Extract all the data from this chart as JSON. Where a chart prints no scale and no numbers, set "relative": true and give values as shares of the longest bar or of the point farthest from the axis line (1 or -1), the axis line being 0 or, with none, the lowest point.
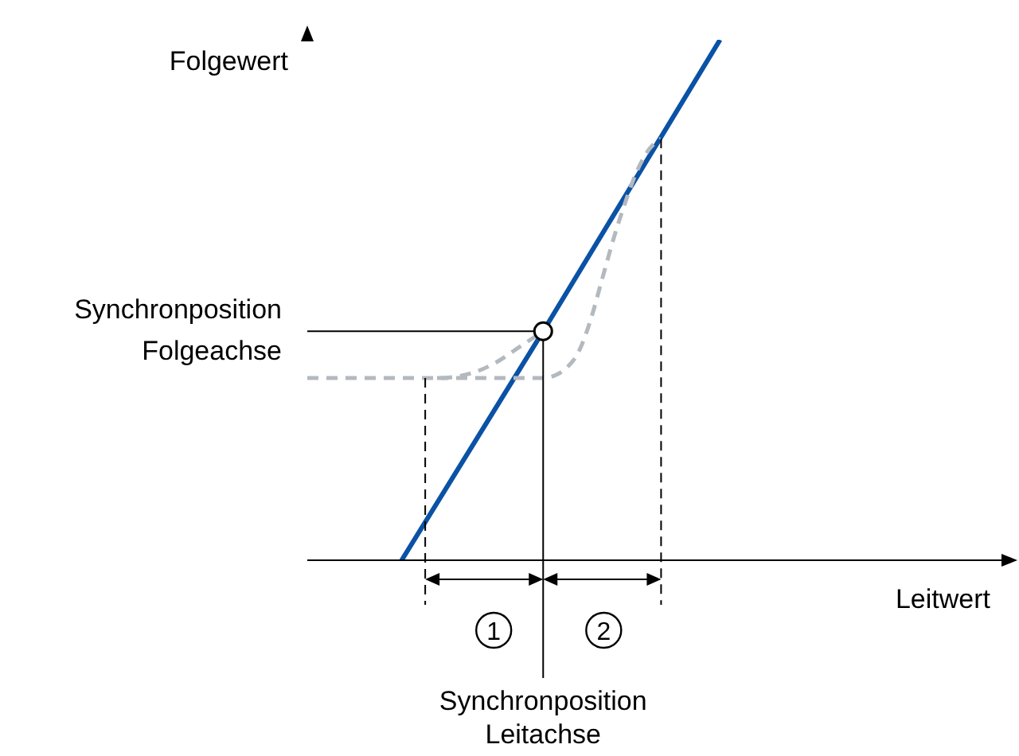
{
  "chart_data": {
    "type": "line",
    "relative": true,
    "xlabel": "Leitwert",
    "ylabel": "Folgewert",
    "categories": [
      null,
      null,
      null,
      null,
      null,
      null,
      null,
      null,
      null,
      null,
      null,
      null,
      null,
      null,
      null,
      null,
      null,
      null,
      null,
      null,
      null,
      null,
      null,
      null,
      null,
      null,
      null,
      null,
      null,
      null,
      null,
      null,
      null,
      null,
      null,
      null,
      null,
      null,
      null,
      null,
      null,
      null,
      null,
      null,
      null,
      null,
      null,
      null,
      null,
      null,
      null,
      null,
      null,
      null,
      null,
      null,
      null,
      null,
      null,
      null
    ],
    "series": [
      {
        "color": "#0a52a5",
        "line_style": "solid",
        "values": [
          null,
          null,
          null,
          null,
          null,
          null,
          null,
          null,
          0,
          null,
          null,
          null,
          null,
          null,
          null,
          null,
          null,
          null,
          null,
          null,
          0.44,
          null,
          null,
          null,
          null,
          null,
          null,
          null,
          null,
          null,
          null,
          null,
          null,
          null,
          null,
          1,
          null,
          null,
          null,
          null,
          null,
          null,
          null,
          null,
          null,
          null,
          null,
          null,
          null,
          null,
          null,
          null,
          null,
          null,
          null,
          null,
          null,
          null,
          null,
          null
        ]
      },
      {
        "color": "#b4b9bf",
        "line_style": "dashed",
        "values": [
          0.35,
          null,
          null,
          null,
          null,
          null,
          null,
          null,
          null,
          null,
          null,
          0.35,
          null,
          null,
          0.36,
          null,
          0.38,
          null,
          0.41,
          null,
          0.44,
          null,
          null,
          null,
          null,
          null,
          null,
          null,
          null,
          null,
          null,
          null,
          null,
          null,
          null,
          null,
          null,
          null,
          null,
          null,
          null,
          null,
          null,
          null,
          null,
          null,
          null,
          null,
          null,
          null,
          null,
          null,
          null,
          null,
          null,
          null,
          null,
          null,
          null,
          null
        ]
      },
      {
        "color": "#b4b9bf",
        "line_style": "dashed",
        "values": [
          null,
          null,
          null,
          null,
          null,
          null,
          null,
          null,
          null,
          null,
          null,
          0.35,
          null,
          null,
          null,
          null,
          null,
          null,
          null,
          null,
          0.35,
          0.355,
          0.37,
          0.4,
          0.46,
          0.54,
          0.62,
          0.69,
          0.75,
          0.79,
          0.81,
          null,
          null,
          null,
          null,
          null,
          null,
          null,
          null,
          null,
          null,
          null,
          null,
          null,
          null,
          null,
          null,
          null,
          null,
          null,
          null,
          null,
          null,
          null,
          null,
          null,
          null,
          null,
          null,
          null
        ]
      }
    ],
    "ref_lines": [
      {
        "axis": "y",
        "value": 0.44,
        "label": "Synchronposition\nFolgeachse",
        "color": "#000000",
        "line_style": "solid"
      }
    ],
    "annotations": [
      "1",
      "2",
      "Synchronposition\nLeitachse"
    ],
    "grid": false,
    "legend": false,
    "marker": "none"
  }
}
